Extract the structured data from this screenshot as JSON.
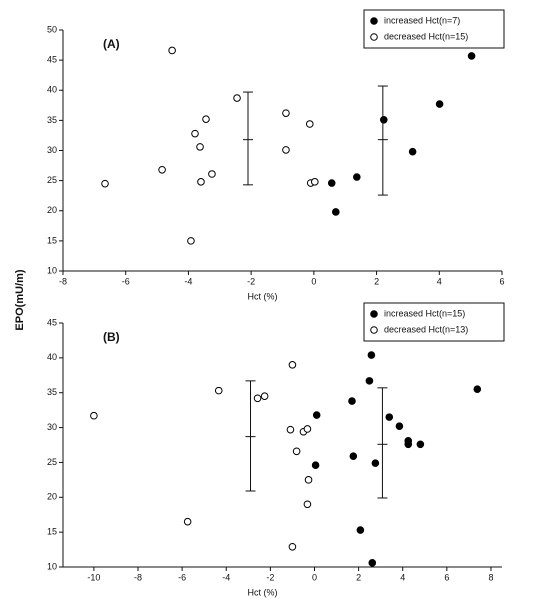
{
  "chart_data": [
    {
      "type": "scatter",
      "title": "(A)",
      "xlabel": "Hct (%)",
      "ylabel": "EPO(mU/m)",
      "xlim": [
        -8,
        6
      ],
      "ylim": [
        10,
        50
      ],
      "xticks": [
        -8,
        -6,
        -4,
        -2,
        0,
        2,
        4,
        6
      ],
      "yticks": [
        10,
        15,
        20,
        25,
        30,
        35,
        40,
        45,
        50
      ],
      "legend": "upper right",
      "series": [
        {
          "name": "increased Hct(n=7)",
          "marker": "filled",
          "color": "#000000",
          "x": [
            0.57,
            0.7,
            1.37,
            2.23,
            3.15,
            4.01,
            5.03
          ],
          "values": [
            24.6,
            19.8,
            25.6,
            35.1,
            29.8,
            37.7,
            45.7
          ]
        },
        {
          "name": "decreased Hct(n=15)",
          "marker": "open",
          "color": "#000000",
          "x": [
            -4.52,
            -4.84,
            -6.66,
            -3.79,
            -3.63,
            -3.44,
            -3.25,
            -3.6,
            -3.92,
            -2.45,
            -0.89,
            -0.89,
            -0.13,
            -0.1,
            0.03
          ],
          "values": [
            46.6,
            26.8,
            24.5,
            32.8,
            30.6,
            35.2,
            26.1,
            24.8,
            15.0,
            38.7,
            36.2,
            30.1,
            34.4,
            24.6,
            24.8
          ]
        }
      ],
      "error_bars": [
        {
          "x": -2.1,
          "y": 31.8,
          "low": 24.3,
          "high": 39.7
        },
        {
          "x": 2.2,
          "y": 31.8,
          "low": 22.6,
          "high": 40.7
        }
      ]
    },
    {
      "type": "scatter",
      "title": "(B)",
      "xlabel": "Hct (%)",
      "xlim": [
        -11.4,
        8.5
      ],
      "ylim": [
        10,
        45
      ],
      "xticks": [
        -10,
        -8,
        -6,
        -4,
        -2,
        0,
        2,
        4,
        6,
        8
      ],
      "yticks": [
        10,
        15,
        20,
        25,
        30,
        35,
        40,
        45
      ],
      "legend": "upper right",
      "series": [
        {
          "name": "increased Hct(n=15)",
          "marker": "filled",
          "color": "#000000",
          "x": [
            0.1,
            0.05,
            1.7,
            1.76,
            2.08,
            2.49,
            2.58,
            2.62,
            2.76,
            3.39,
            3.85,
            4.25,
            4.25,
            4.8,
            7.38
          ],
          "values": [
            31.8,
            24.6,
            33.8,
            25.9,
            15.3,
            36.7,
            40.4,
            10.6,
            24.9,
            31.5,
            30.2,
            28.1,
            27.6,
            27.6,
            35.5
          ]
        },
        {
          "name": "decreased Hct(n=13)",
          "marker": "open",
          "color": "#000000",
          "x": [
            -10,
            -5.75,
            -4.34,
            -2.58,
            -2.26,
            -1.0,
            -1.09,
            -0.81,
            -0.5,
            -0.32,
            -0.27,
            -0.32,
            -1.0
          ],
          "values": [
            31.7,
            16.5,
            35.3,
            34.2,
            34.5,
            39.0,
            29.7,
            26.6,
            29.4,
            29.8,
            22.5,
            19.0,
            12.9
          ]
        }
      ],
      "error_bars": [
        {
          "x": -2.9,
          "y": 28.7,
          "low": 20.9,
          "high": 36.7
        },
        {
          "x": 3.08,
          "y": 27.6,
          "low": 19.9,
          "high": 35.7
        }
      ]
    }
  ]
}
